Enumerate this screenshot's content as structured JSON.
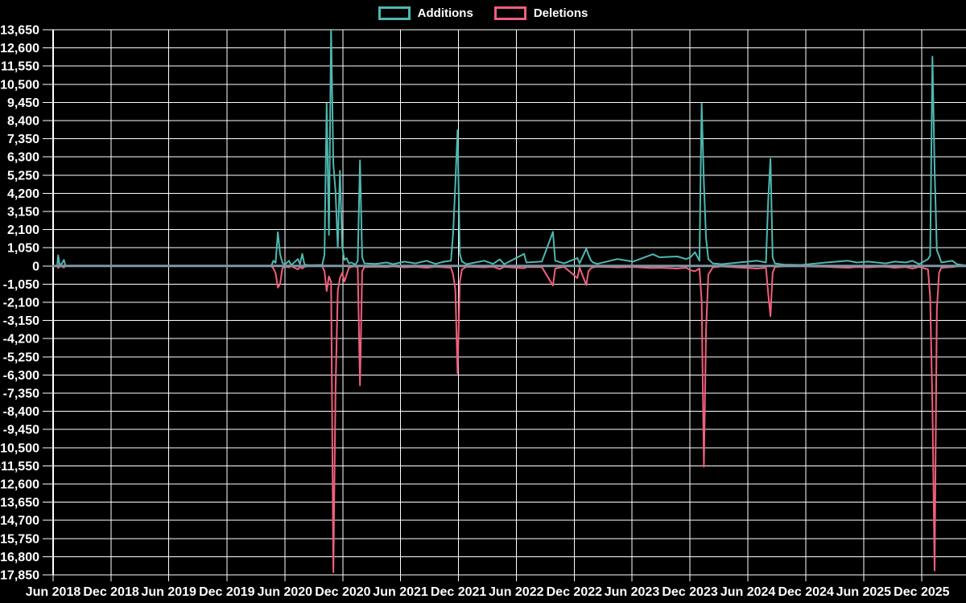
{
  "page": {
    "background": "#000000"
  },
  "chart_data": {
    "type": "line",
    "title": "",
    "legend_position": "top-center",
    "grid": true,
    "colors": {
      "background": "#000000",
      "grid": "#ffffff",
      "axis_text": "#ffffff",
      "zero_line": "#7e96a3",
      "additions": "#4db8b0",
      "deletions": "#f15f7d"
    },
    "note": "Weekly code additions and deletions; deletions plotted as negative values; spike magnitudes estimated from gridlines",
    "x_domain": [
      "2018-06-01",
      "2026-04-20"
    ],
    "ylim": [
      -17850,
      13650
    ],
    "y_tick_step": 1050,
    "x_ticks": [
      {
        "date": "2018-06-01",
        "label": "Jun 2018"
      },
      {
        "date": "2018-12-01",
        "label": "Dec 2018"
      },
      {
        "date": "2019-06-01",
        "label": "Jun 2019"
      },
      {
        "date": "2019-12-01",
        "label": "Dec 2019"
      },
      {
        "date": "2020-06-01",
        "label": "Jun 2020"
      },
      {
        "date": "2020-12-01",
        "label": "Dec 2020"
      },
      {
        "date": "2021-06-01",
        "label": "Jun 2021"
      },
      {
        "date": "2021-12-01",
        "label": "Dec 2021"
      },
      {
        "date": "2022-06-01",
        "label": "Jun 2022"
      },
      {
        "date": "2022-12-01",
        "label": "Dec 2022"
      },
      {
        "date": "2023-06-01",
        "label": "Jun 2023"
      },
      {
        "date": "2023-12-01",
        "label": "Dec 2023"
      },
      {
        "date": "2024-06-01",
        "label": "Jun 2024"
      },
      {
        "date": "2024-12-01",
        "label": "Dec 2024"
      },
      {
        "date": "2025-06-01",
        "label": "Jun 2025"
      },
      {
        "date": "2025-12-01",
        "label": "Dec 2025"
      }
    ],
    "y_ticks": [
      {
        "value": 13650,
        "label": "13,650"
      },
      {
        "value": 12600,
        "label": "12,600"
      },
      {
        "value": 11550,
        "label": "11,550"
      },
      {
        "value": 10500,
        "label": "10,500"
      },
      {
        "value": 9450,
        "label": "9,450"
      },
      {
        "value": 8400,
        "label": "8,400"
      },
      {
        "value": 7350,
        "label": "7,350"
      },
      {
        "value": 6300,
        "label": "6,300"
      },
      {
        "value": 5250,
        "label": "5,250"
      },
      {
        "value": 4200,
        "label": "4,200"
      },
      {
        "value": 3150,
        "label": "3,150"
      },
      {
        "value": 2100,
        "label": "2,100"
      },
      {
        "value": 1050,
        "label": "1,050"
      },
      {
        "value": 0,
        "label": "0"
      },
      {
        "value": -1050,
        "label": "-1,050"
      },
      {
        "value": -2100,
        "label": "-2,100"
      },
      {
        "value": -3150,
        "label": "-3,150"
      },
      {
        "value": -4200,
        "label": "-4,200"
      },
      {
        "value": -5250,
        "label": "-5,250"
      },
      {
        "value": -6300,
        "label": "-6,300"
      },
      {
        "value": -7350,
        "label": "-7,350"
      },
      {
        "value": -8400,
        "label": "-8,400"
      },
      {
        "value": -9450,
        "label": "-9,450"
      },
      {
        "value": -10500,
        "label": "-10,500"
      },
      {
        "value": -11550,
        "label": "-11,550"
      },
      {
        "value": -12600,
        "label": "-12,600"
      },
      {
        "value": -13650,
        "label": "-13,650"
      },
      {
        "value": -14700,
        "label": "-14,700"
      },
      {
        "value": -15750,
        "label": "-15,750"
      },
      {
        "value": -16800,
        "label": "-16,800"
      },
      {
        "value": -17850,
        "label": "-17,850"
      }
    ],
    "x": [
      "2018-06-01",
      "2018-06-14",
      "2018-06-17",
      "2018-06-21",
      "2018-06-28",
      "2018-07-05",
      "2018-07-10",
      "2020-04-19",
      "2020-04-26",
      "2020-05-03",
      "2020-05-10",
      "2020-05-17",
      "2020-05-24",
      "2020-05-31",
      "2020-06-14",
      "2020-06-21",
      "2020-07-12",
      "2020-07-19",
      "2020-07-26",
      "2020-08-02",
      "2020-08-16",
      "2020-09-27",
      "2020-10-04",
      "2020-10-11",
      "2020-10-18",
      "2020-10-25",
      "2020-11-01",
      "2020-11-08",
      "2020-11-15",
      "2020-11-22",
      "2020-11-29",
      "2020-12-06",
      "2020-12-13",
      "2020-12-20",
      "2020-12-27",
      "2021-01-10",
      "2021-01-17",
      "2021-01-24",
      "2021-01-31",
      "2021-02-07",
      "2021-03-14",
      "2021-04-18",
      "2021-05-09",
      "2021-06-13",
      "2021-07-18",
      "2021-08-22",
      "2021-09-19",
      "2021-10-17",
      "2021-11-07",
      "2021-11-14",
      "2021-11-21",
      "2021-11-28",
      "2021-12-05",
      "2021-12-12",
      "2021-12-26",
      "2022-02-20",
      "2022-03-20",
      "2022-04-10",
      "2022-04-24",
      "2022-06-26",
      "2022-07-03",
      "2022-08-21",
      "2022-09-25",
      "2022-10-02",
      "2022-10-30",
      "2022-12-11",
      "2022-12-18",
      "2023-01-08",
      "2023-01-15",
      "2023-01-22",
      "2023-01-29",
      "2023-02-12",
      "2023-04-16",
      "2023-06-04",
      "2023-08-06",
      "2023-08-27",
      "2023-10-22",
      "2023-11-19",
      "2023-12-03",
      "2023-12-17",
      "2023-12-31",
      "2024-01-07",
      "2024-01-14",
      "2024-01-21",
      "2024-01-28",
      "2024-02-11",
      "2024-03-10",
      "2024-06-30",
      "2024-07-28",
      "2024-08-04",
      "2024-08-11",
      "2024-08-18",
      "2024-08-25",
      "2024-09-22",
      "2024-11-17",
      "2025-02-02",
      "2025-03-09",
      "2025-04-13",
      "2025-05-11",
      "2025-06-15",
      "2025-07-13",
      "2025-08-10",
      "2025-09-07",
      "2025-10-12",
      "2025-11-02",
      "2025-11-23",
      "2025-12-21",
      "2025-12-28",
      "2026-01-04",
      "2026-01-11",
      "2026-01-18",
      "2026-01-25",
      "2026-02-01",
      "2026-03-08",
      "2026-03-22",
      "2026-04-12",
      "2026-04-20"
    ],
    "series": [
      {
        "name": "Additions",
        "color": "#4db8b0",
        "values": [
          0,
          0,
          620,
          90,
          120,
          350,
          0,
          0,
          300,
          180,
          1950,
          700,
          200,
          60,
          300,
          40,
          400,
          100,
          700,
          90,
          40,
          60,
          650,
          9400,
          1800,
          13700,
          5900,
          4300,
          1050,
          5500,
          1100,
          350,
          450,
          150,
          200,
          80,
          300,
          6100,
          500,
          150,
          120,
          200,
          100,
          250,
          150,
          300,
          120,
          250,
          300,
          1900,
          4800,
          7850,
          700,
          250,
          100,
          300,
          120,
          380,
          100,
          700,
          200,
          260,
          1970,
          300,
          150,
          460,
          150,
          1000,
          650,
          350,
          200,
          120,
          400,
          250,
          680,
          500,
          550,
          400,
          500,
          800,
          300,
          9400,
          4800,
          1600,
          400,
          150,
          100,
          300,
          200,
          3800,
          6200,
          500,
          150,
          80,
          60,
          200,
          250,
          300,
          200,
          250,
          200,
          150,
          250,
          200,
          300,
          100,
          400,
          600,
          12100,
          5600,
          900,
          600,
          200,
          300,
          100,
          50,
          30
        ]
      },
      {
        "name": "Deletions",
        "color": "#f15f7d",
        "values": [
          0,
          0,
          -110,
          -30,
          -20,
          -90,
          0,
          0,
          -150,
          -420,
          -1250,
          -1050,
          -150,
          -30,
          -80,
          -10,
          -200,
          -50,
          -150,
          -40,
          -10,
          -20,
          -300,
          -1450,
          -600,
          -900,
          -17700,
          -7200,
          -1450,
          -700,
          -400,
          -900,
          -500,
          -100,
          -60,
          -20,
          -100,
          -6900,
          -300,
          -60,
          -40,
          -60,
          -30,
          -80,
          -50,
          -100,
          -40,
          -80,
          -100,
          -500,
          -1400,
          -6200,
          -900,
          -200,
          -40,
          -80,
          -40,
          -180,
          -50,
          -130,
          -60,
          -70,
          -1130,
          -150,
          -50,
          -700,
          -100,
          -1100,
          -300,
          -150,
          -80,
          -40,
          -80,
          -60,
          -120,
          -100,
          -150,
          -100,
          -250,
          -300,
          -150,
          -2000,
          -11600,
          -3700,
          -500,
          -80,
          -30,
          -150,
          -100,
          -1600,
          -2900,
          -400,
          -60,
          -20,
          -20,
          -50,
          -80,
          -100,
          -60,
          -80,
          -50,
          -50,
          -100,
          -60,
          -150,
          -50,
          -200,
          -1800,
          -8100,
          -17600,
          -2500,
          -400,
          -100,
          -60,
          -30,
          -20,
          -10
        ]
      }
    ]
  }
}
